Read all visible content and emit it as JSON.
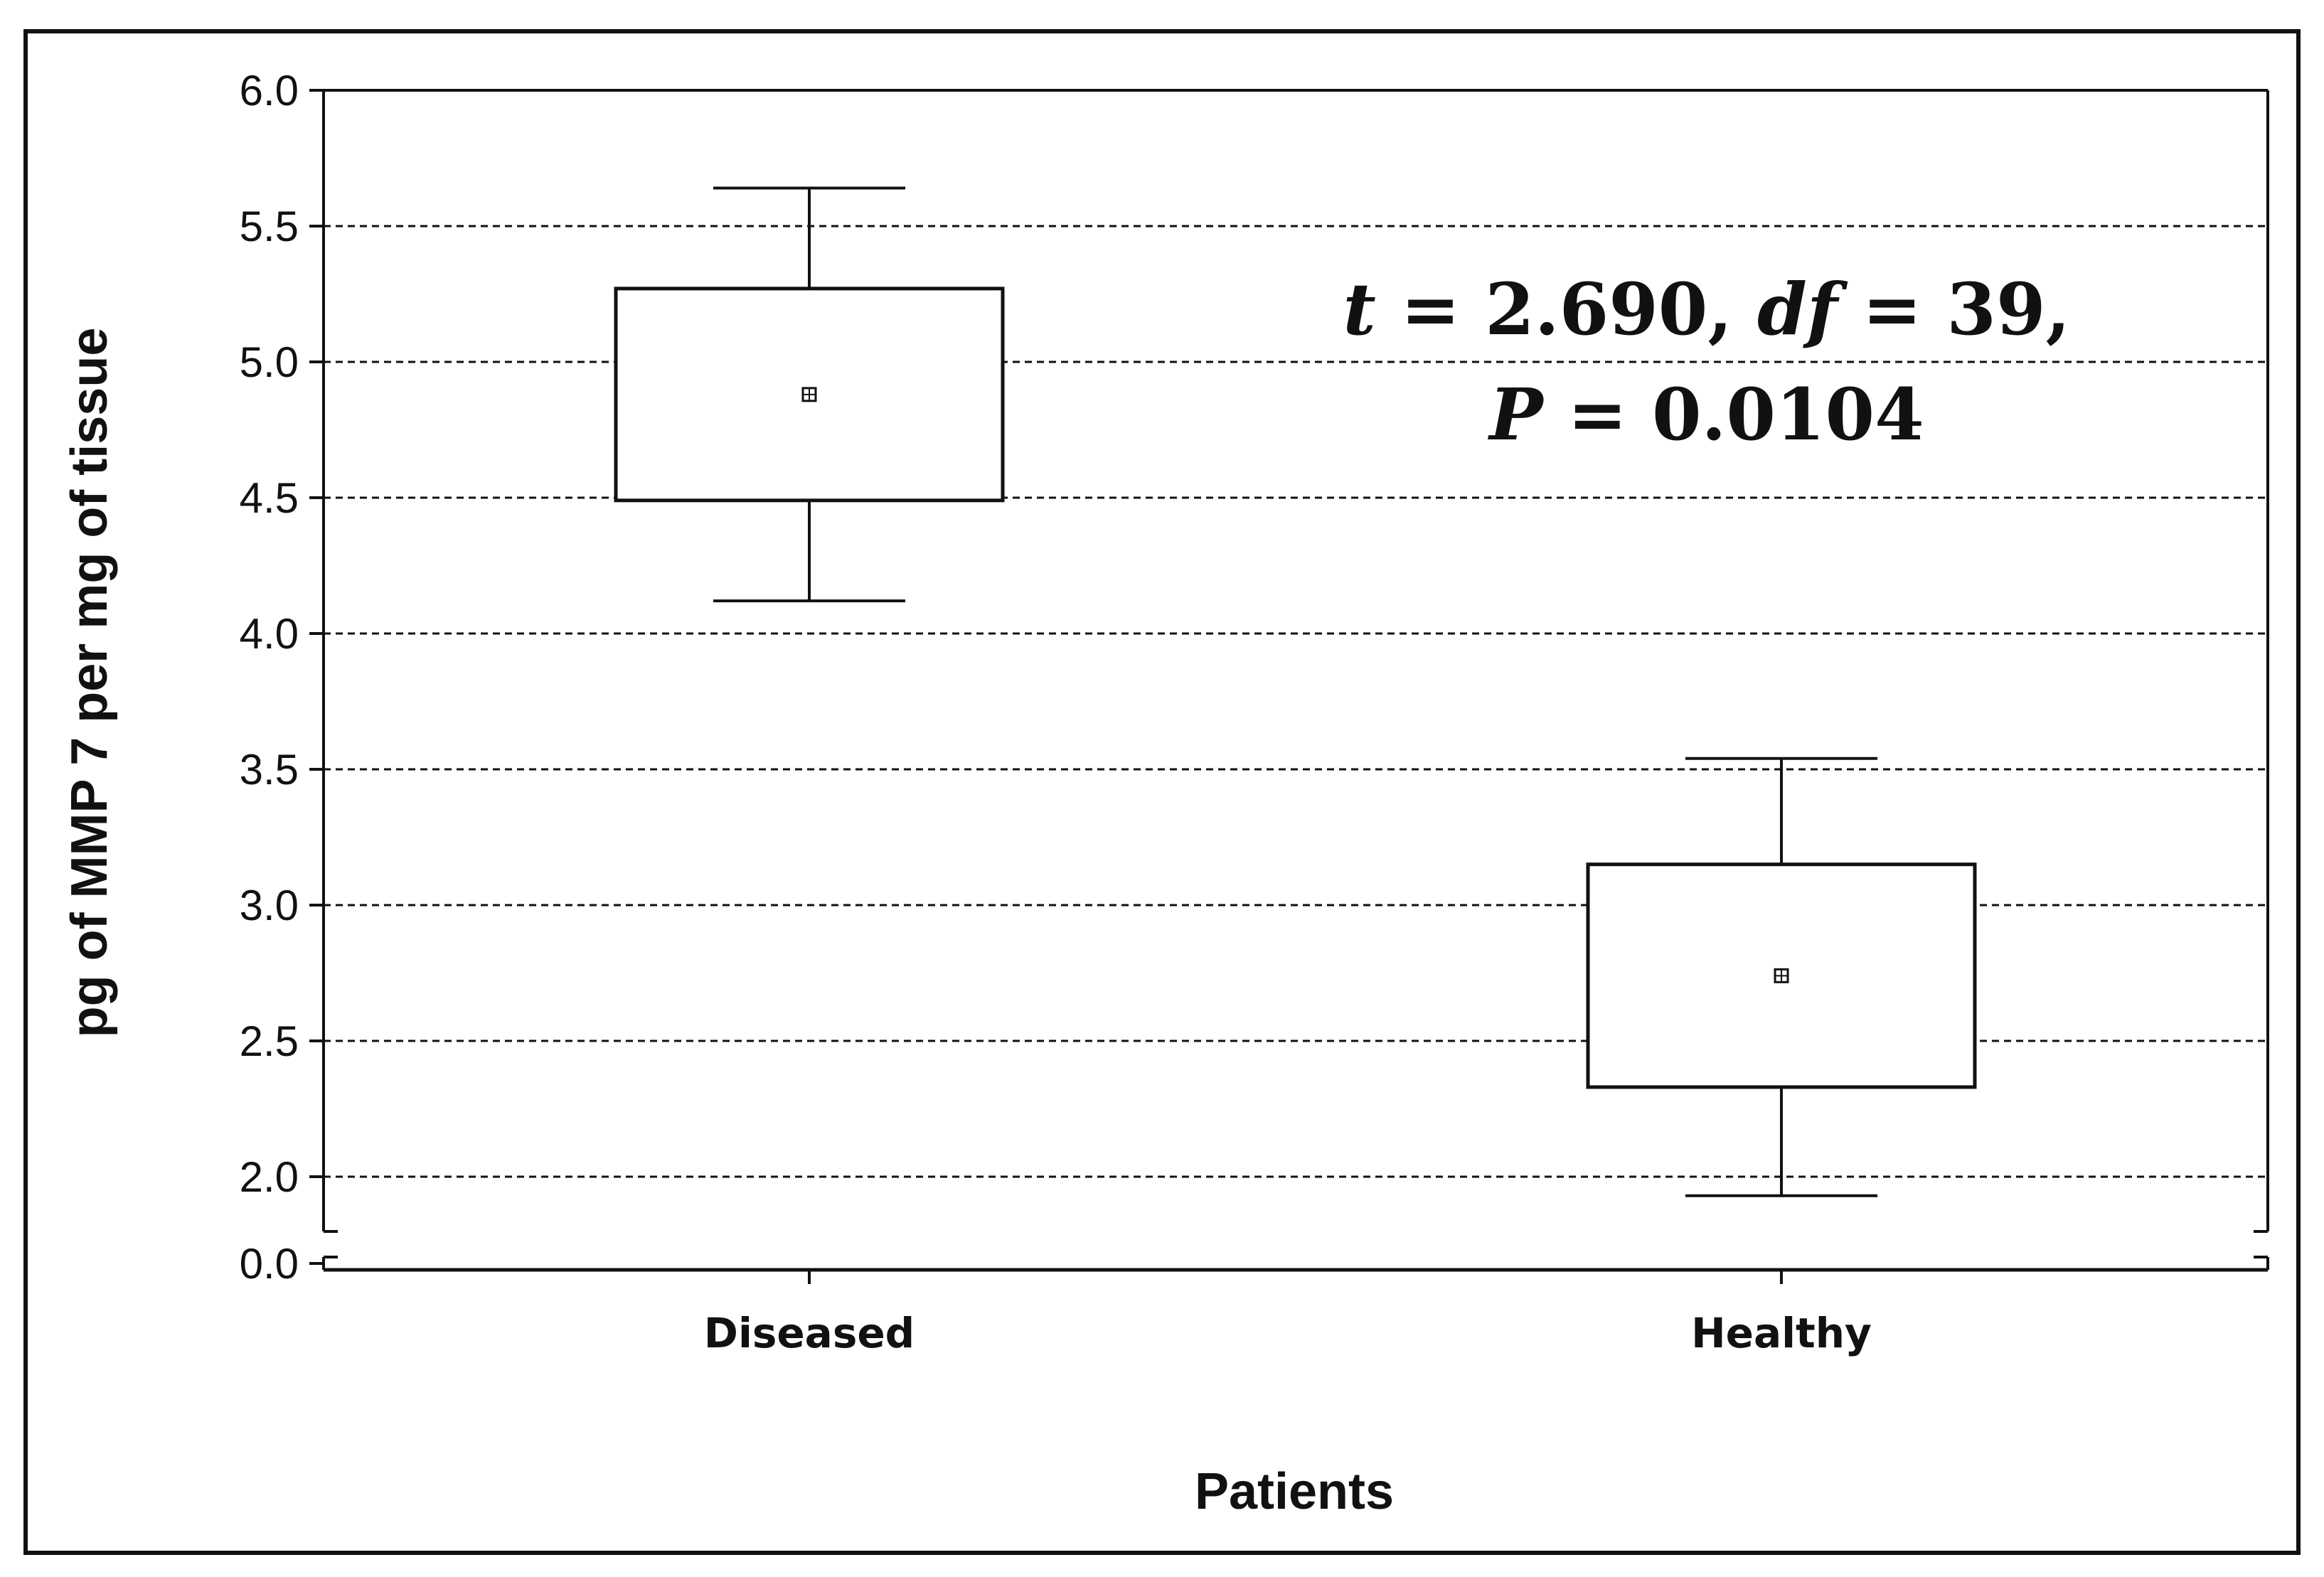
{
  "chart_data": {
    "type": "box",
    "categories": [
      "Diseased",
      "Healthy"
    ],
    "series": [
      {
        "values": [
          {
            "category": "Diseased",
            "mean": 4.88,
            "box_low": 4.49,
            "box_high": 5.27,
            "whisker_low": 4.12,
            "whisker_high": 5.64
          },
          {
            "category": "Healthy",
            "mean": 2.74,
            "box_low": 2.33,
            "box_high": 3.15,
            "whisker_low": 1.93,
            "whisker_high": 3.54
          }
        ]
      }
    ],
    "xlabel": "Patients",
    "ylabel": "pg of MMP 7 per mg of tissue",
    "ylim": [
      1.8,
      6.0
    ],
    "y_axis_break": true,
    "y_break_value": 0.0,
    "yticks": [
      2.0,
      2.5,
      3.0,
      3.5,
      4.0,
      4.5,
      5.0,
      5.5,
      6.0
    ],
    "ytick_labels": [
      "2.0",
      "2.5",
      "3.0",
      "3.5",
      "4.0",
      "4.5",
      "5.0",
      "5.5",
      "6.0"
    ],
    "y_break_label": "0.0",
    "grid": "horizontal-dashed",
    "annotation": {
      "line1": {
        "t_sym": "t",
        "t_text": " = 2.690, ",
        "df_sym": "df",
        "df_text": " = 39,"
      },
      "line2": {
        "p_sym": "P",
        "p_text": " = 0.0104"
      }
    }
  },
  "colors": {
    "ink": "#111111",
    "background": "#ffffff",
    "box_fill": "#ffffff"
  }
}
